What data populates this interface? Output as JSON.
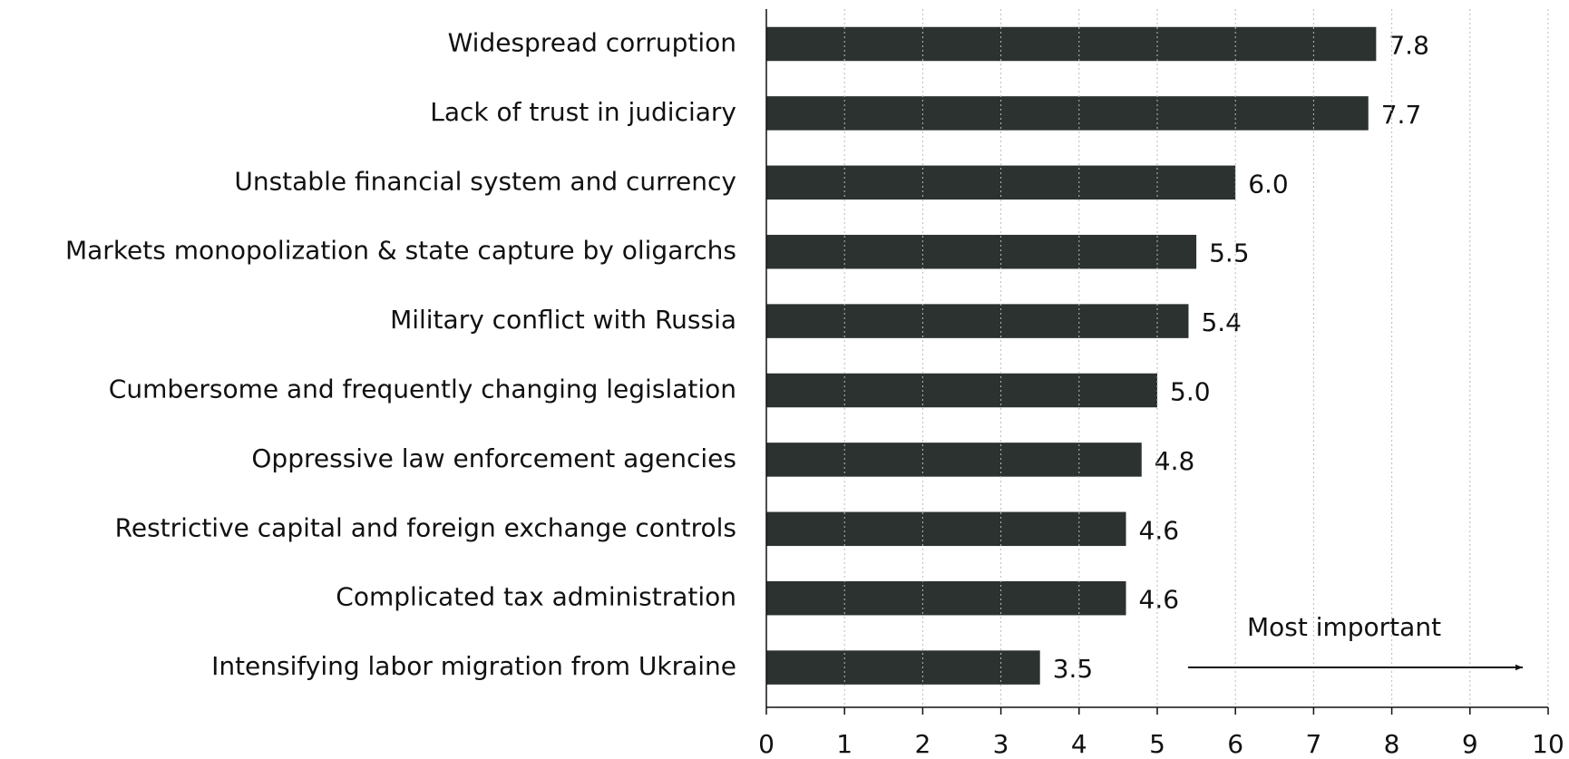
{
  "chart_data": {
    "type": "barh",
    "categories": [
      "Widespread corruption",
      "Lack of trust in judiciary",
      "Unstable financial system and currency",
      "Markets monopolization & state capture by oligarchs",
      "Military conflict with Russia",
      "Cumbersome and frequently changing legislation",
      "Oppressive law enforcement agencies",
      "Restrictive capital and foreign exchange controls",
      "Complicated tax administration",
      "Intensifying labor migration from Ukraine"
    ],
    "values": [
      7.8,
      7.7,
      6.0,
      5.5,
      5.4,
      5.0,
      4.8,
      4.6,
      4.6,
      3.5
    ],
    "value_labels": [
      "7.8",
      "7.7",
      "6.0",
      "5.5",
      "5.4",
      "5.0",
      "4.8",
      "4.6",
      "4.6",
      "3.5"
    ],
    "color": "#2b3230",
    "xlim": [
      0,
      10
    ],
    "xticks": [
      0,
      1,
      2,
      3,
      4,
      5,
      6,
      7,
      8,
      9,
      10
    ],
    "grid": true,
    "annotation": "Most important"
  }
}
